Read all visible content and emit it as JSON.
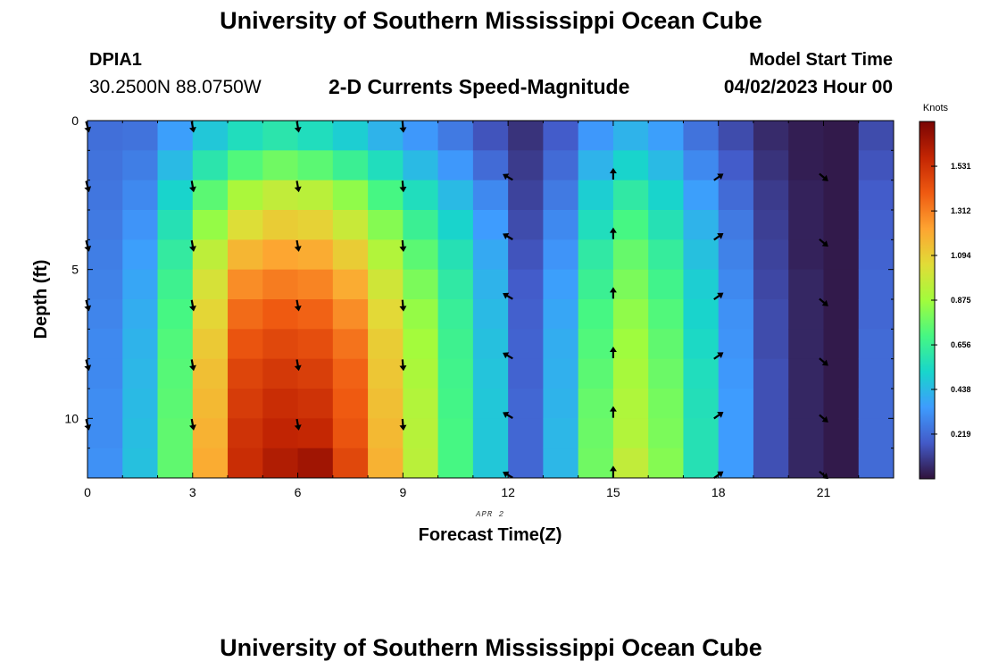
{
  "page": {
    "title_top": "University of Southern Mississippi Ocean Cube",
    "title_bottom": "University of Southern Mississippi Ocean Cube",
    "station_id": "DPIA1",
    "coordinates": "30.2500N  88.0750W",
    "subtitle": "2-D Currents Speed-Magnitude",
    "model_start_label": "Model Start Time",
    "model_start_value": "04/02/2023 Hour 00"
  },
  "chart_data": {
    "type": "heatmap",
    "title": "2-D Currents Speed-Magnitude",
    "xlabel": "Forecast Time(Z)",
    "ylabel": "Depth (ft)",
    "date_label": "APR 2",
    "colorbar_label": "Knots",
    "xlim": [
      0,
      23
    ],
    "ylim": [
      0,
      12
    ],
    "x_ticks": [
      0,
      3,
      6,
      9,
      12,
      15,
      18,
      21
    ],
    "y_ticks": [
      0,
      5,
      10
    ],
    "colorbar_ticks": [
      "1.531",
      "1.312",
      "1.094",
      "0.875",
      "0.656",
      "0.438",
      "0.219"
    ],
    "colorbar_range": [
      0,
      1.75
    ],
    "hours": [
      0,
      1,
      2,
      3,
      4,
      5,
      6,
      7,
      8,
      9,
      10,
      11,
      12,
      13,
      14,
      15,
      16,
      17,
      18,
      19,
      20,
      21,
      22
    ],
    "depth_bin_ft": 1,
    "speed_knots_by_hour": [
      [
        0.23,
        0.24,
        0.25,
        0.26,
        0.27,
        0.28,
        0.29,
        0.3,
        0.3,
        0.31,
        0.31,
        0.32
      ],
      [
        0.24,
        0.27,
        0.3,
        0.33,
        0.36,
        0.38,
        0.4,
        0.42,
        0.43,
        0.44,
        0.45,
        0.46
      ],
      [
        0.36,
        0.44,
        0.52,
        0.58,
        0.63,
        0.67,
        0.7,
        0.72,
        0.73,
        0.74,
        0.75,
        0.75
      ],
      [
        0.48,
        0.6,
        0.74,
        0.85,
        0.95,
        1.02,
        1.07,
        1.11,
        1.14,
        1.16,
        1.18,
        1.2
      ],
      [
        0.56,
        0.72,
        0.9,
        1.04,
        1.17,
        1.28,
        1.36,
        1.42,
        1.47,
        1.5,
        1.53,
        1.55
      ],
      [
        0.6,
        0.78,
        0.96,
        1.1,
        1.22,
        1.32,
        1.4,
        1.46,
        1.51,
        1.55,
        1.58,
        1.62
      ],
      [
        0.56,
        0.74,
        0.94,
        1.08,
        1.2,
        1.3,
        1.38,
        1.44,
        1.49,
        1.53,
        1.57,
        1.66
      ],
      [
        0.5,
        0.66,
        0.84,
        0.98,
        1.1,
        1.2,
        1.28,
        1.34,
        1.38,
        1.4,
        1.42,
        1.46
      ],
      [
        0.42,
        0.56,
        0.7,
        0.82,
        0.92,
        1.0,
        1.06,
        1.1,
        1.12,
        1.14,
        1.16,
        1.18
      ],
      [
        0.34,
        0.44,
        0.56,
        0.66,
        0.74,
        0.8,
        0.85,
        0.88,
        0.9,
        0.92,
        0.93,
        0.94
      ],
      [
        0.26,
        0.34,
        0.44,
        0.52,
        0.58,
        0.62,
        0.65,
        0.67,
        0.68,
        0.69,
        0.7,
        0.7
      ],
      [
        0.16,
        0.22,
        0.3,
        0.35,
        0.39,
        0.42,
        0.44,
        0.46,
        0.47,
        0.48,
        0.48,
        0.48
      ],
      [
        0.08,
        0.1,
        0.12,
        0.14,
        0.16,
        0.18,
        0.19,
        0.2,
        0.2,
        0.21,
        0.21,
        0.21
      ],
      [
        0.18,
        0.22,
        0.26,
        0.3,
        0.33,
        0.36,
        0.38,
        0.4,
        0.41,
        0.42,
        0.43,
        0.43
      ],
      [
        0.34,
        0.42,
        0.5,
        0.56,
        0.62,
        0.66,
        0.7,
        0.72,
        0.74,
        0.76,
        0.77,
        0.78
      ],
      [
        0.42,
        0.52,
        0.62,
        0.7,
        0.76,
        0.8,
        0.84,
        0.87,
        0.89,
        0.91,
        0.92,
        0.96
      ],
      [
        0.36,
        0.44,
        0.52,
        0.58,
        0.64,
        0.68,
        0.72,
        0.75,
        0.77,
        0.79,
        0.8,
        0.82
      ],
      [
        0.24,
        0.3,
        0.36,
        0.42,
        0.46,
        0.5,
        0.52,
        0.54,
        0.56,
        0.57,
        0.58,
        0.58
      ],
      [
        0.14,
        0.18,
        0.22,
        0.26,
        0.28,
        0.3,
        0.32,
        0.33,
        0.34,
        0.35,
        0.35,
        0.35
      ],
      [
        0.06,
        0.08,
        0.1,
        0.11,
        0.12,
        0.13,
        0.14,
        0.14,
        0.15,
        0.15,
        0.15,
        0.15
      ],
      [
        0.03,
        0.03,
        0.04,
        0.04,
        0.04,
        0.05,
        0.05,
        0.05,
        0.05,
        0.05,
        0.05,
        0.05
      ],
      [
        0.02,
        0.02,
        0.02,
        0.02,
        0.02,
        0.02,
        0.02,
        0.02,
        0.02,
        0.02,
        0.02,
        0.02
      ],
      [
        0.14,
        0.16,
        0.18,
        0.19,
        0.2,
        0.21,
        0.21,
        0.22,
        0.22,
        0.22,
        0.22,
        0.22
      ]
    ],
    "vectors": [
      {
        "hour": 0,
        "depths": [
          0.2,
          2.2,
          4.2,
          6.2,
          8.2,
          10.2
        ],
        "dir_deg": 165
      },
      {
        "hour": 3,
        "depths": [
          0.2,
          2.2,
          4.2,
          6.2,
          8.2,
          10.2
        ],
        "dir_deg": 170
      },
      {
        "hour": 6,
        "depths": [
          0.2,
          2.2,
          4.2,
          6.2,
          8.2,
          10.2
        ],
        "dir_deg": 170
      },
      {
        "hour": 9,
        "depths": [
          0.2,
          2.2,
          4.2,
          6.2,
          8.2,
          10.2
        ],
        "dir_deg": 175
      },
      {
        "hour": 12,
        "depths": [
          1.9,
          3.9,
          5.9,
          7.9,
          9.9,
          11.9
        ],
        "dir_deg": 300
      },
      {
        "hour": 15,
        "depths": [
          1.8,
          3.8,
          5.8,
          7.8,
          9.8,
          11.8
        ],
        "dir_deg": 0
      },
      {
        "hour": 18,
        "depths": [
          1.9,
          3.9,
          5.9,
          7.9,
          9.9,
          11.9
        ],
        "dir_deg": 55
      },
      {
        "hour": 21,
        "depths": [
          1.9,
          4.1,
          6.1,
          8.1,
          10.0,
          11.9
        ],
        "dir_deg": 130
      }
    ]
  }
}
